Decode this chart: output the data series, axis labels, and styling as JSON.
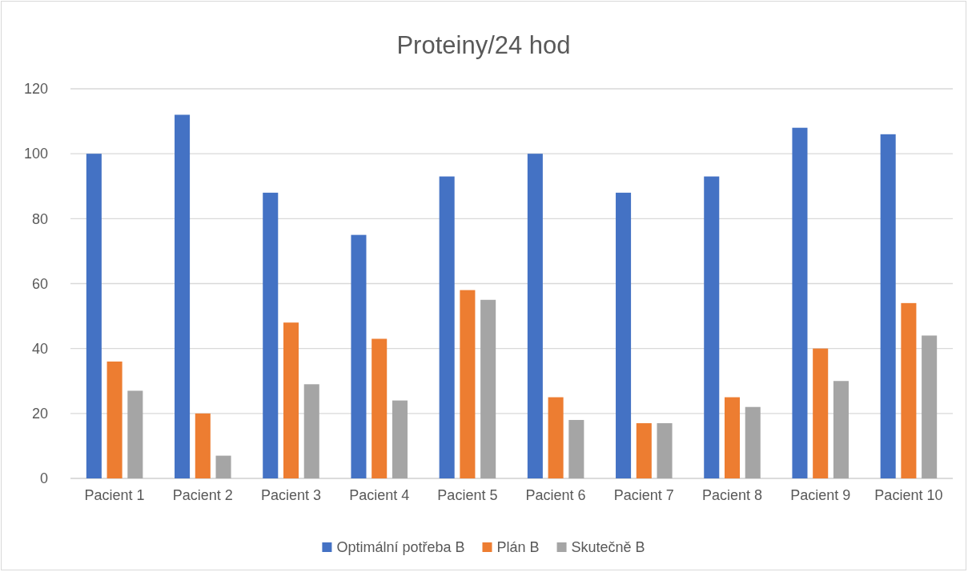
{
  "chart_data": {
    "type": "bar",
    "title": "Proteiny/24 hod",
    "categories": [
      "Pacient 1",
      "Pacient 2",
      "Pacient 3",
      "Pacient 4",
      "Pacient 5",
      "Pacient 6",
      "Pacient 7",
      "Pacient 8",
      "Pacient 9",
      "Pacient 10"
    ],
    "series": [
      {
        "name": "Optimální potřeba B",
        "color": "#4472c4",
        "values": [
          100,
          112,
          88,
          75,
          93,
          100,
          88,
          93,
          108,
          106
        ]
      },
      {
        "name": "Plán B",
        "color": "#ed7d31",
        "values": [
          36,
          20,
          48,
          43,
          58,
          25,
          17,
          25,
          40,
          54
        ]
      },
      {
        "name": "Skutečně B",
        "color": "#a5a5a5",
        "values": [
          27,
          7,
          29,
          24,
          55,
          18,
          17,
          22,
          30,
          44
        ]
      }
    ],
    "ylim": [
      0,
      120
    ],
    "yticks": [
      0,
      20,
      40,
      60,
      80,
      100,
      120
    ],
    "grid": "y",
    "legend": "bottom"
  }
}
